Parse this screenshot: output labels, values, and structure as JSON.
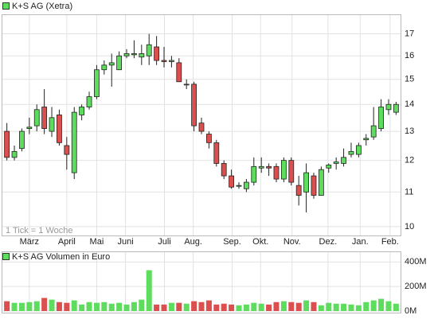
{
  "chart_data": [
    {
      "type": "candlestick",
      "legend": "K+S AG (Xetra)",
      "note": "1 Tick = 1 Woche",
      "up_color": "#5ddc5d",
      "down_color": "#dc4f4f",
      "log_scale": true,
      "grid": true,
      "ylim": [
        9.76,
        17.9
      ],
      "yticks": [
        10,
        11,
        12,
        13,
        14,
        15,
        16,
        17
      ],
      "xlim": [
        -0.6,
        52.6
      ],
      "xticks": [
        {
          "value": 3.0,
          "label": "März"
        },
        {
          "value": 8.0,
          "label": "April"
        },
        {
          "value": 12.0,
          "label": "Mai"
        },
        {
          "value": 15.85,
          "label": "Juni"
        },
        {
          "value": 21.05,
          "label": "Juli"
        },
        {
          "value": 24.9,
          "label": "Aug."
        },
        {
          "value": 30.1,
          "label": "Sep."
        },
        {
          "value": 33.9,
          "label": "Okt."
        },
        {
          "value": 38.1,
          "label": "Nov."
        },
        {
          "value": 42.9,
          "label": "Dez."
        },
        {
          "value": 47.2,
          "label": "Jan."
        },
        {
          "value": 51.2,
          "label": "Feb."
        }
      ],
      "open": [
        13.0,
        12.1,
        12.4,
        13.1,
        13.2,
        13.9,
        13.0,
        13.6,
        12.5,
        11.6,
        13.6,
        13.9,
        14.3,
        15.4,
        15.6,
        15.4,
        16.0,
        16.05,
        15.95,
        16.0,
        16.4,
        15.8,
        15.75,
        15.7,
        14.8,
        14.8,
        13.3,
        12.9,
        12.6,
        11.9,
        11.5,
        11.2,
        11.1,
        11.3,
        11.75,
        11.8,
        11.8,
        11.4,
        12.0,
        11.2,
        11.0,
        11.5,
        10.9,
        11.75,
        11.9,
        11.9,
        12.2,
        12.2,
        12.7,
        12.8,
        13.1,
        13.8,
        13.7
      ],
      "high": [
        13.3,
        12.5,
        13.1,
        13.5,
        14.0,
        14.6,
        13.9,
        13.8,
        12.8,
        13.9,
        14.0,
        14.5,
        15.6,
        15.8,
        16.1,
        16.2,
        16.3,
        16.7,
        16.5,
        17.0,
        16.9,
        16.4,
        16.0,
        15.9,
        15.0,
        14.9,
        13.5,
        13.0,
        12.7,
        12.0,
        11.7,
        11.3,
        11.4,
        12.1,
        12.1,
        11.9,
        11.9,
        12.1,
        12.1,
        11.5,
        11.9,
        11.6,
        11.8,
        11.9,
        12.1,
        12.4,
        12.6,
        12.6,
        12.9,
        13.9,
        14.2,
        14.2,
        14.1
      ],
      "low": [
        12.0,
        12.0,
        12.3,
        12.9,
        13.0,
        12.9,
        12.8,
        12.5,
        11.7,
        11.4,
        13.4,
        13.8,
        14.2,
        15.2,
        14.7,
        15.4,
        15.9,
        15.9,
        15.6,
        15.6,
        15.6,
        15.5,
        15.5,
        14.9,
        14.6,
        13.0,
        12.9,
        12.4,
        11.8,
        11.4,
        11.1,
        11.1,
        11.0,
        11.2,
        11.6,
        11.5,
        11.3,
        11.3,
        11.2,
        10.6,
        10.4,
        10.8,
        10.9,
        11.6,
        11.7,
        11.8,
        12.1,
        12.1,
        12.5,
        12.7,
        13.0,
        13.6,
        13.6
      ],
      "close": [
        12.1,
        12.3,
        13.0,
        13.15,
        13.8,
        13.1,
        13.5,
        12.6,
        12.2,
        13.7,
        13.9,
        14.3,
        15.4,
        15.6,
        15.7,
        16.0,
        16.1,
        16.1,
        16.1,
        16.5,
        15.8,
        15.75,
        15.8,
        14.9,
        14.8,
        13.2,
        13.0,
        12.6,
        11.9,
        11.5,
        11.15,
        11.2,
        11.3,
        11.8,
        11.8,
        11.75,
        11.4,
        12.0,
        11.3,
        10.9,
        11.6,
        10.9,
        11.7,
        11.85,
        11.95,
        12.1,
        12.3,
        12.5,
        12.75,
        13.2,
        13.9,
        14.0,
        14.0
      ]
    },
    {
      "type": "volume",
      "legend": "K+S AG Volumen in Euro",
      "ylim": [
        0,
        480000000
      ],
      "yticks": [
        {
          "value": 0,
          "label": "0M"
        },
        {
          "value": 200000000,
          "label": "200M"
        },
        {
          "value": 400000000,
          "label": "400M"
        }
      ],
      "values": [
        80000000,
        67000000,
        67000000,
        73000000,
        80000000,
        107000000,
        93000000,
        73000000,
        67000000,
        87000000,
        53000000,
        73000000,
        67000000,
        73000000,
        60000000,
        67000000,
        53000000,
        73000000,
        93000000,
        333000000,
        53000000,
        53000000,
        67000000,
        67000000,
        60000000,
        80000000,
        73000000,
        87000000,
        53000000,
        60000000,
        53000000,
        47000000,
        53000000,
        67000000,
        60000000,
        53000000,
        73000000,
        80000000,
        73000000,
        67000000,
        87000000,
        73000000,
        47000000,
        67000000,
        60000000,
        60000000,
        53000000,
        47000000,
        73000000,
        87000000,
        100000000,
        80000000,
        60000000
      ]
    }
  ]
}
